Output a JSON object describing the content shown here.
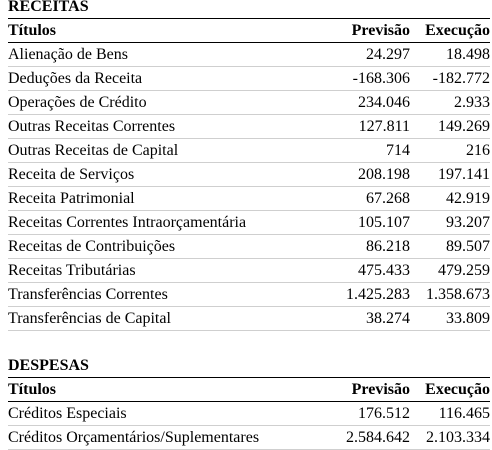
{
  "receitas": {
    "section_title": "RECEITAS",
    "headers": {
      "title": "Títulos",
      "forecast": "Previsão",
      "execution": "Execução"
    },
    "rows": [
      {
        "title": "Alienação de Bens",
        "forecast": "24.297",
        "execution": "18.498"
      },
      {
        "title": "Deduções da Receita",
        "forecast": "-168.306",
        "execution": "-182.772"
      },
      {
        "title": "Operações de Crédito",
        "forecast": "234.046",
        "execution": "2.933"
      },
      {
        "title": "Outras Receitas Correntes",
        "forecast": "127.811",
        "execution": "149.269"
      },
      {
        "title": "Outras Receitas de Capital",
        "forecast": "714",
        "execution": "216"
      },
      {
        "title": "Receita de Serviços",
        "forecast": "208.198",
        "execution": "197.141"
      },
      {
        "title": "Receita Patrimonial",
        "forecast": "67.268",
        "execution": "42.919"
      },
      {
        "title": "Receitas Correntes Intraorçamentária",
        "forecast": "105.107",
        "execution": "93.207"
      },
      {
        "title": "Receitas de Contribuições",
        "forecast": "86.218",
        "execution": "89.507"
      },
      {
        "title": "Receitas Tributárias",
        "forecast": "475.433",
        "execution": "479.259"
      },
      {
        "title": "Transferências Correntes",
        "forecast": "1.425.283",
        "execution": "1.358.673"
      },
      {
        "title": "Transferências de Capital",
        "forecast": "38.274",
        "execution": "33.809"
      }
    ]
  },
  "despesas": {
    "section_title": "DESPESAS",
    "headers": {
      "title": "Títulos",
      "forecast": "Previsão",
      "execution": "Execução"
    },
    "rows": [
      {
        "title": "Créditos Especiais",
        "forecast": "176.512",
        "execution": "116.465"
      },
      {
        "title": "Créditos Orçamentários/Suplementares",
        "forecast": "2.584.642",
        "execution": "2.103.334"
      }
    ]
  }
}
